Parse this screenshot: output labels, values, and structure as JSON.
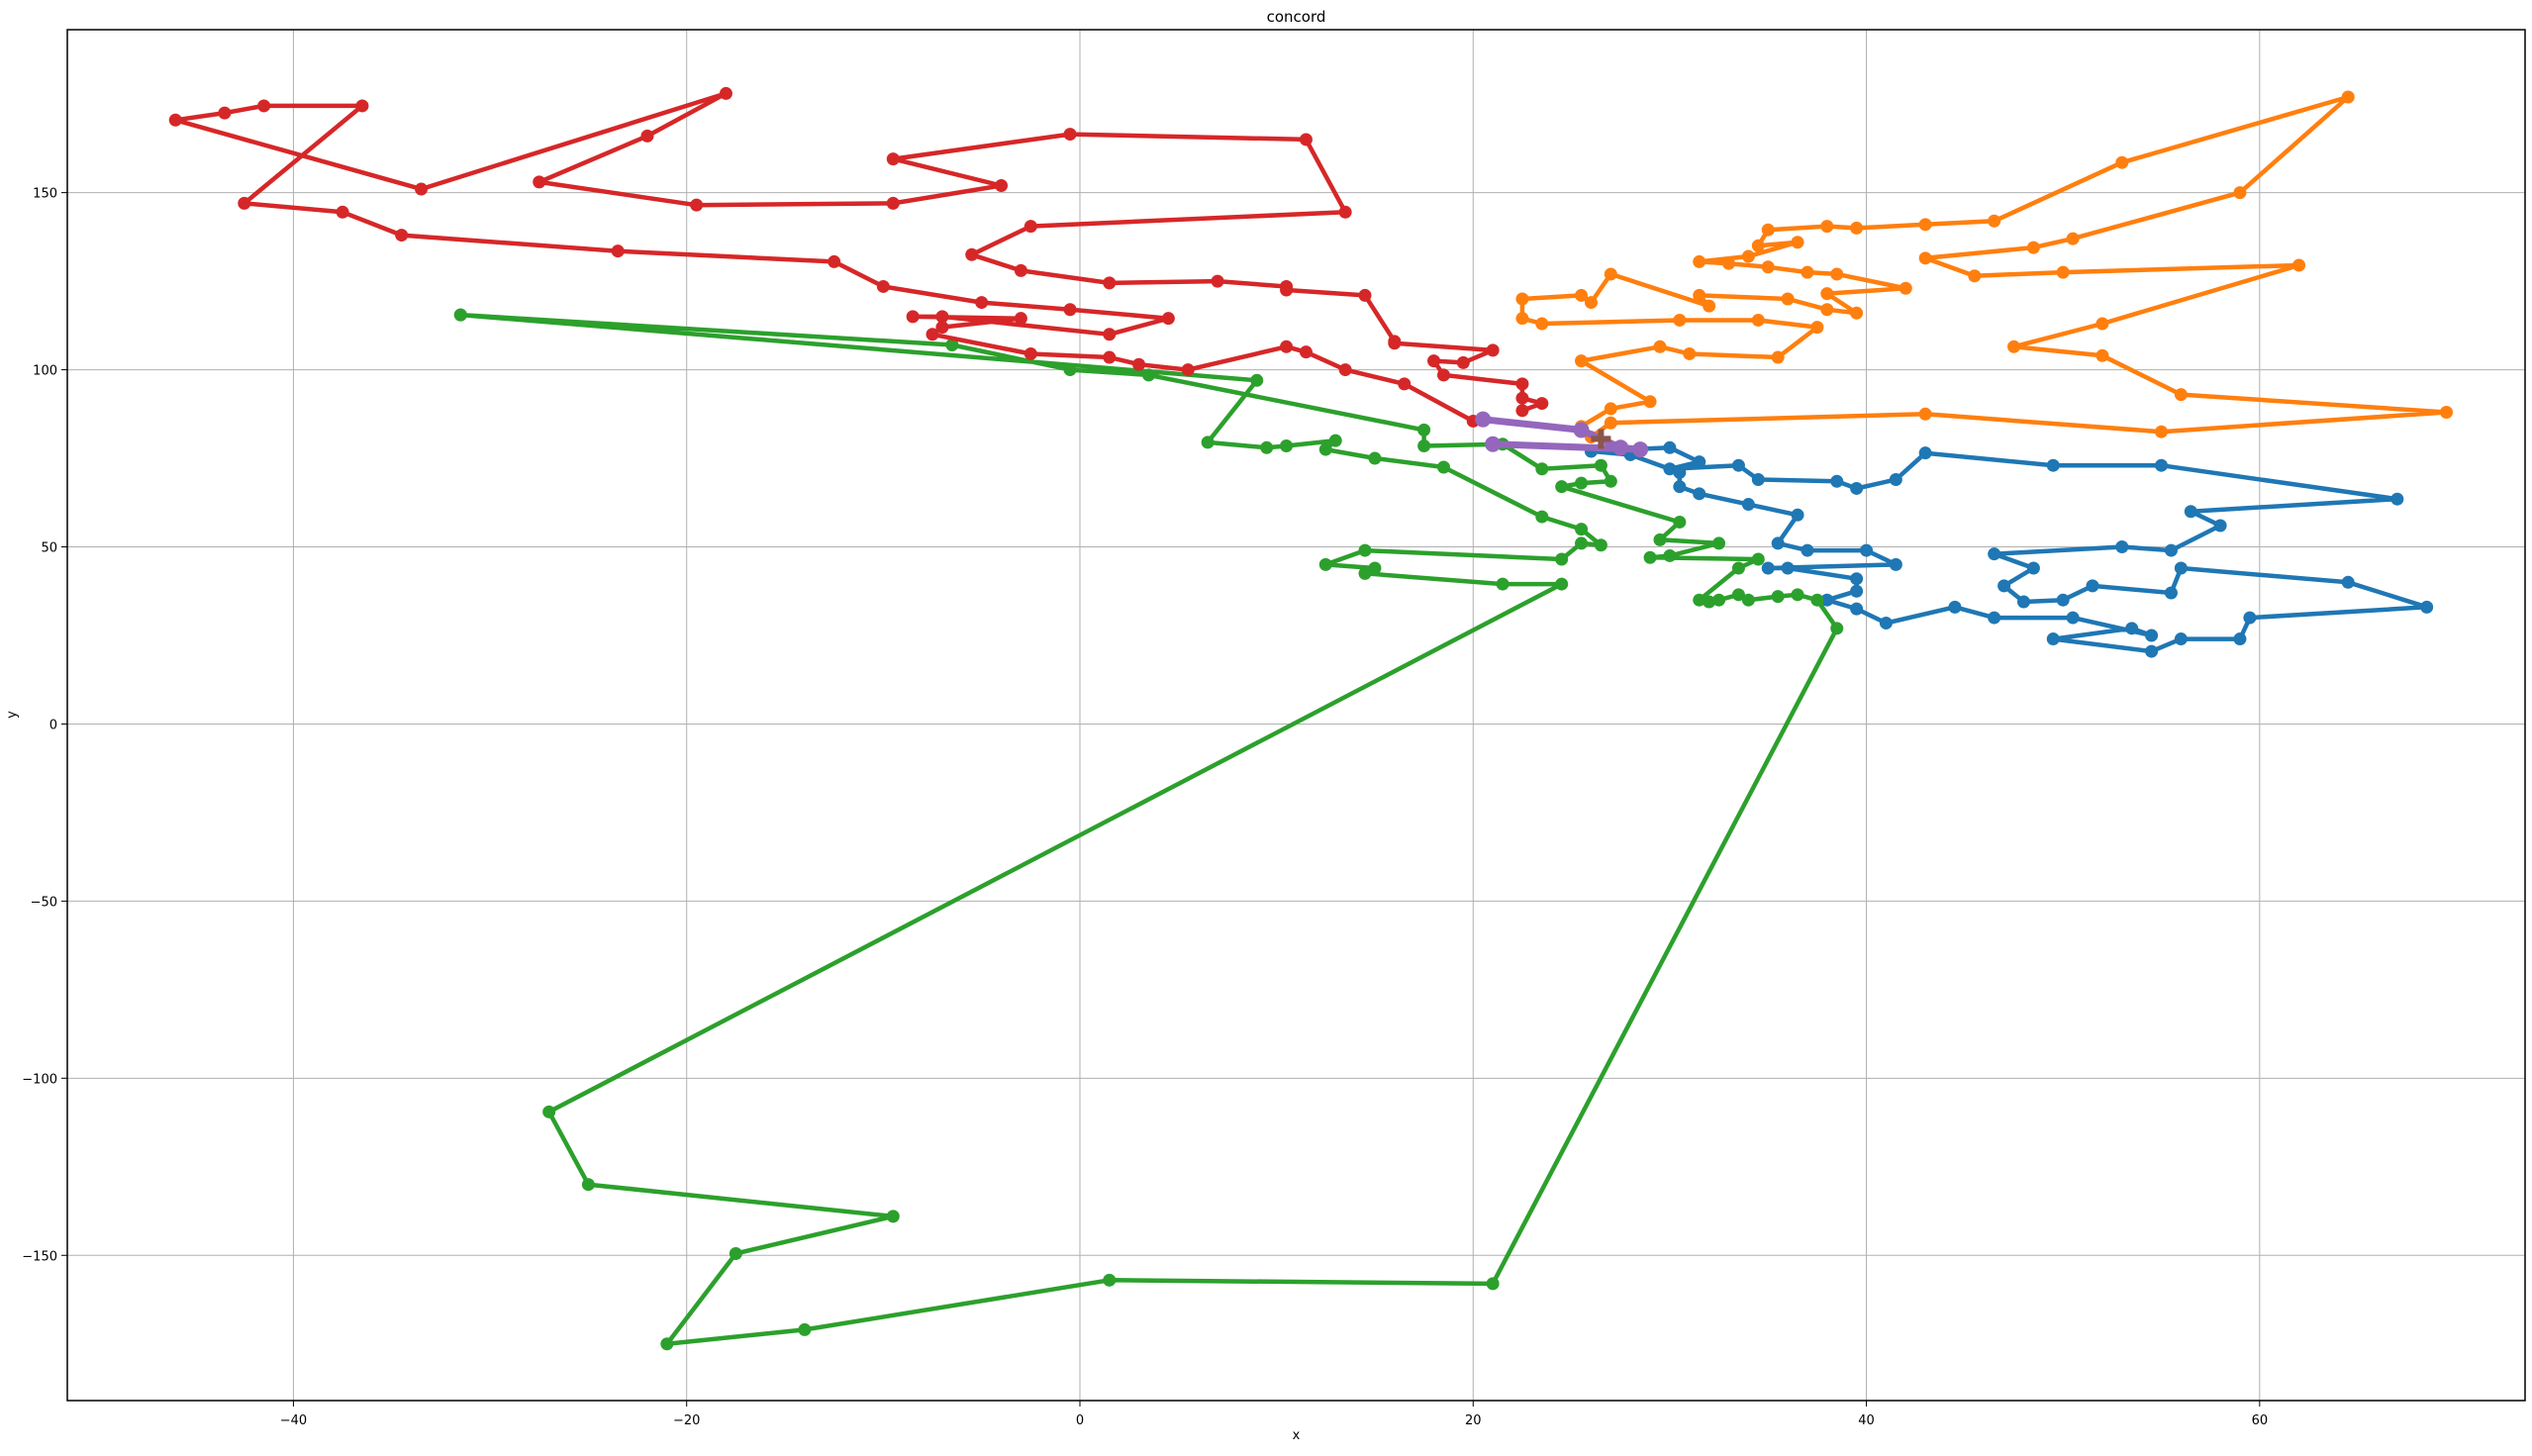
{
  "chart_data": {
    "type": "line",
    "title": "concord",
    "xlabel": "x",
    "ylabel": "y",
    "xlim": [
      -51.5,
      73.5
    ],
    "ylim": [
      -191,
      196
    ],
    "grid": true,
    "x_ticks": [
      -40,
      -20,
      0,
      20,
      40,
      60
    ],
    "y_ticks": [
      -150,
      -100,
      -50,
      0,
      50,
      100,
      150
    ],
    "x_tick_labels": [
      "−40",
      "−20",
      "0",
      "20",
      "40",
      "60"
    ],
    "y_tick_labels": [
      "−150",
      "−100",
      "−50",
      "0",
      "50",
      "100",
      "150"
    ],
    "series": [
      {
        "color": "#1f77b4",
        "points": [
          [
            26.0,
            77.0
          ],
          [
            30.0,
            78.0
          ],
          [
            31.5,
            74.0
          ],
          [
            30.0,
            72.0
          ],
          [
            33.5,
            73.0
          ],
          [
            34.5,
            69.0
          ],
          [
            38.5,
            68.5
          ],
          [
            39.5,
            66.5
          ],
          [
            41.5,
            69.0
          ],
          [
            43.0,
            76.5
          ],
          [
            49.5,
            73.0
          ],
          [
            55.0,
            73.0
          ],
          [
            67.0,
            63.5
          ],
          [
            56.5,
            60.0
          ],
          [
            58.0,
            56.0
          ],
          [
            55.5,
            49.0
          ],
          [
            53.0,
            50.0
          ],
          [
            46.5,
            48.0
          ],
          [
            48.5,
            44.0
          ],
          [
            47.0,
            39.0
          ],
          [
            48.0,
            34.5
          ],
          [
            50.0,
            35.0
          ],
          [
            51.5,
            39.0
          ],
          [
            55.5,
            37.0
          ],
          [
            56.0,
            44.0
          ],
          [
            64.5,
            40.0
          ],
          [
            68.5,
            33.0
          ],
          [
            59.5,
            30.0
          ],
          [
            59.0,
            24.0
          ],
          [
            56.0,
            24.0
          ],
          [
            54.5,
            20.5
          ],
          [
            49.5,
            24.0
          ],
          [
            53.5,
            27.0
          ],
          [
            54.5,
            25.0
          ],
          [
            50.5,
            30.0
          ],
          [
            46.5,
            30.0
          ],
          [
            44.5,
            33.0
          ],
          [
            41.0,
            28.5
          ],
          [
            39.5,
            32.5
          ],
          [
            38.0,
            35.0
          ],
          [
            39.5,
            37.5
          ],
          [
            39.5,
            41.0
          ],
          [
            36.0,
            44.0
          ],
          [
            35.0,
            44.0
          ],
          [
            41.5,
            45.0
          ],
          [
            40.0,
            49.0
          ],
          [
            37.0,
            49.0
          ],
          [
            35.5,
            51.0
          ],
          [
            36.5,
            59.0
          ],
          [
            34.0,
            62.0
          ],
          [
            31.5,
            65.0
          ],
          [
            30.5,
            67.0
          ],
          [
            30.5,
            71.0
          ],
          [
            28.0,
            76.0
          ],
          [
            26.0,
            77.0
          ]
        ]
      },
      {
        "color": "#ff7f0e",
        "points": [
          [
            26.0,
            81.0
          ],
          [
            27.0,
            85.0
          ],
          [
            43.0,
            87.5
          ],
          [
            55.0,
            82.5
          ],
          [
            69.5,
            88.0
          ],
          [
            56.0,
            93.0
          ],
          [
            52.0,
            104.0
          ],
          [
            47.5,
            106.5
          ],
          [
            52.0,
            113.0
          ],
          [
            62.0,
            129.5
          ],
          [
            50.0,
            127.5
          ],
          [
            45.5,
            126.5
          ],
          [
            43.0,
            131.5
          ],
          [
            48.5,
            134.5
          ],
          [
            50.5,
            137.0
          ],
          [
            59.0,
            150.0
          ],
          [
            64.5,
            177.0
          ],
          [
            53.0,
            158.5
          ],
          [
            46.5,
            142.0
          ],
          [
            43.0,
            141.0
          ],
          [
            39.5,
            140.0
          ],
          [
            38.0,
            140.5
          ],
          [
            35.0,
            139.5
          ],
          [
            34.5,
            135.0
          ],
          [
            36.5,
            136.0
          ],
          [
            34.0,
            132.0
          ],
          [
            31.5,
            130.5
          ],
          [
            33.0,
            130.0
          ],
          [
            35.0,
            129.0
          ],
          [
            37.0,
            127.5
          ],
          [
            38.5,
            127.0
          ],
          [
            42.0,
            123.0
          ],
          [
            38.0,
            121.5
          ],
          [
            39.5,
            116.0
          ],
          [
            38.0,
            117.0
          ],
          [
            36.0,
            120.0
          ],
          [
            31.5,
            121.0
          ],
          [
            32.0,
            118.0
          ],
          [
            27.0,
            127.0
          ],
          [
            26.0,
            119.0
          ],
          [
            25.5,
            121.0
          ],
          [
            22.5,
            120.0
          ],
          [
            22.5,
            114.5
          ],
          [
            23.5,
            113.0
          ],
          [
            30.5,
            114.0
          ],
          [
            34.5,
            114.0
          ],
          [
            37.5,
            112.0
          ],
          [
            35.5,
            103.5
          ],
          [
            31.0,
            104.5
          ],
          [
            29.5,
            106.5
          ],
          [
            25.5,
            102.5
          ],
          [
            29.0,
            91.0
          ],
          [
            27.0,
            89.0
          ],
          [
            25.5,
            84.0
          ]
        ]
      },
      {
        "color": "#2ca02c",
        "points": [
          [
            -31.5,
            115.5
          ],
          [
            -6.5,
            107.0
          ],
          [
            -0.5,
            100.0
          ],
          [
            3.5,
            98.5
          ],
          [
            17.5,
            83.0
          ],
          [
            17.5,
            78.5
          ],
          [
            21.5,
            79.0
          ],
          [
            23.5,
            72.0
          ],
          [
            26.5,
            73.0
          ],
          [
            27.0,
            68.5
          ],
          [
            25.5,
            68.0
          ],
          [
            24.5,
            67.0
          ],
          [
            30.5,
            57.0
          ],
          [
            29.5,
            52.0
          ],
          [
            32.5,
            51.0
          ],
          [
            30.0,
            47.5
          ],
          [
            29.0,
            47.0
          ],
          [
            34.5,
            46.5
          ],
          [
            33.5,
            44.0
          ],
          [
            31.5,
            35.0
          ],
          [
            32.0,
            34.5
          ],
          [
            32.5,
            35.0
          ],
          [
            33.5,
            36.5
          ],
          [
            34.0,
            35.0
          ],
          [
            35.5,
            36.0
          ],
          [
            36.5,
            36.5
          ],
          [
            37.5,
            35.0
          ],
          [
            38.5,
            27.0
          ],
          [
            21.0,
            -158.0
          ],
          [
            1.5,
            -157.0
          ],
          [
            -14.0,
            -171.0
          ],
          [
            -21.0,
            -175.0
          ],
          [
            -17.5,
            -149.5
          ],
          [
            -9.5,
            -139.0
          ],
          [
            -25.0,
            -130.0
          ],
          [
            -27.0,
            -109.5
          ],
          [
            24.5,
            39.5
          ],
          [
            21.5,
            39.5
          ],
          [
            14.5,
            42.5
          ],
          [
            15.0,
            44.0
          ],
          [
            12.5,
            45.0
          ],
          [
            14.5,
            49.0
          ],
          [
            24.5,
            46.5
          ],
          [
            25.5,
            51.0
          ],
          [
            26.5,
            50.5
          ],
          [
            25.5,
            55.0
          ],
          [
            23.5,
            58.5
          ],
          [
            18.5,
            72.5
          ],
          [
            15.0,
            75.0
          ],
          [
            12.5,
            77.5
          ],
          [
            13.0,
            80.0
          ],
          [
            10.5,
            78.5
          ],
          [
            9.5,
            78.0
          ],
          [
            6.5,
            79.5
          ],
          [
            9.0,
            97.0
          ],
          [
            -31.5,
            115.5
          ]
        ]
      },
      {
        "color": "#d62728",
        "points": [
          [
            22.5,
            88.5
          ],
          [
            23.5,
            90.5
          ],
          [
            22.5,
            92.0
          ],
          [
            22.5,
            96.0
          ],
          [
            18.5,
            98.5
          ],
          [
            18.0,
            102.5
          ],
          [
            19.5,
            102.0
          ],
          [
            21.0,
            105.5
          ],
          [
            16.0,
            107.5
          ],
          [
            16.0,
            108.0
          ],
          [
            14.5,
            121.0
          ],
          [
            10.5,
            122.5
          ],
          [
            10.5,
            123.5
          ],
          [
            7.0,
            125.0
          ],
          [
            1.5,
            124.5
          ],
          [
            -3.0,
            128.0
          ],
          [
            -5.5,
            132.5
          ],
          [
            -2.5,
            140.5
          ],
          [
            13.5,
            144.5
          ],
          [
            11.5,
            165.0
          ],
          [
            -0.5,
            166.5
          ],
          [
            -9.5,
            159.5
          ],
          [
            -4.0,
            152.0
          ],
          [
            -9.5,
            147.0
          ],
          [
            -19.5,
            146.5
          ],
          [
            -27.5,
            153.0
          ],
          [
            -22.0,
            166.0
          ],
          [
            -18.0,
            178.0
          ],
          [
            -33.5,
            151.0
          ],
          [
            -46.0,
            170.5
          ],
          [
            -43.5,
            172.5
          ],
          [
            -41.5,
            174.5
          ],
          [
            -36.5,
            174.5
          ],
          [
            -42.5,
            147.0
          ],
          [
            -37.5,
            144.5
          ],
          [
            -34.5,
            138.0
          ],
          [
            -23.5,
            133.5
          ],
          [
            -12.5,
            130.5
          ],
          [
            -10.0,
            123.5
          ],
          [
            -5.0,
            119.0
          ],
          [
            -0.5,
            117.0
          ],
          [
            4.5,
            114.5
          ],
          [
            1.5,
            110.0
          ],
          [
            -7.0,
            115.0
          ],
          [
            -8.5,
            115.0
          ],
          [
            -3.0,
            114.5
          ],
          [
            -7.0,
            112.0
          ],
          [
            -7.5,
            110.0
          ],
          [
            -2.5,
            104.5
          ],
          [
            1.5,
            103.5
          ],
          [
            3.0,
            101.5
          ],
          [
            5.5,
            100.0
          ],
          [
            10.5,
            106.5
          ],
          [
            11.5,
            105.0
          ],
          [
            13.5,
            100.0
          ],
          [
            16.5,
            96.0
          ],
          [
            20.0,
            85.5
          ]
        ]
      },
      {
        "color": "#9467bd",
        "points": [
          [
            20.5,
            86.0
          ],
          [
            25.5,
            83.0
          ],
          [
            27.5,
            78.0
          ],
          [
            28.5,
            77.5
          ],
          [
            21.0,
            79.0
          ]
        ]
      },
      {
        "color": "#8c564b",
        "points": [
          [
            26.5,
            80.5
          ]
        ]
      }
    ]
  }
}
